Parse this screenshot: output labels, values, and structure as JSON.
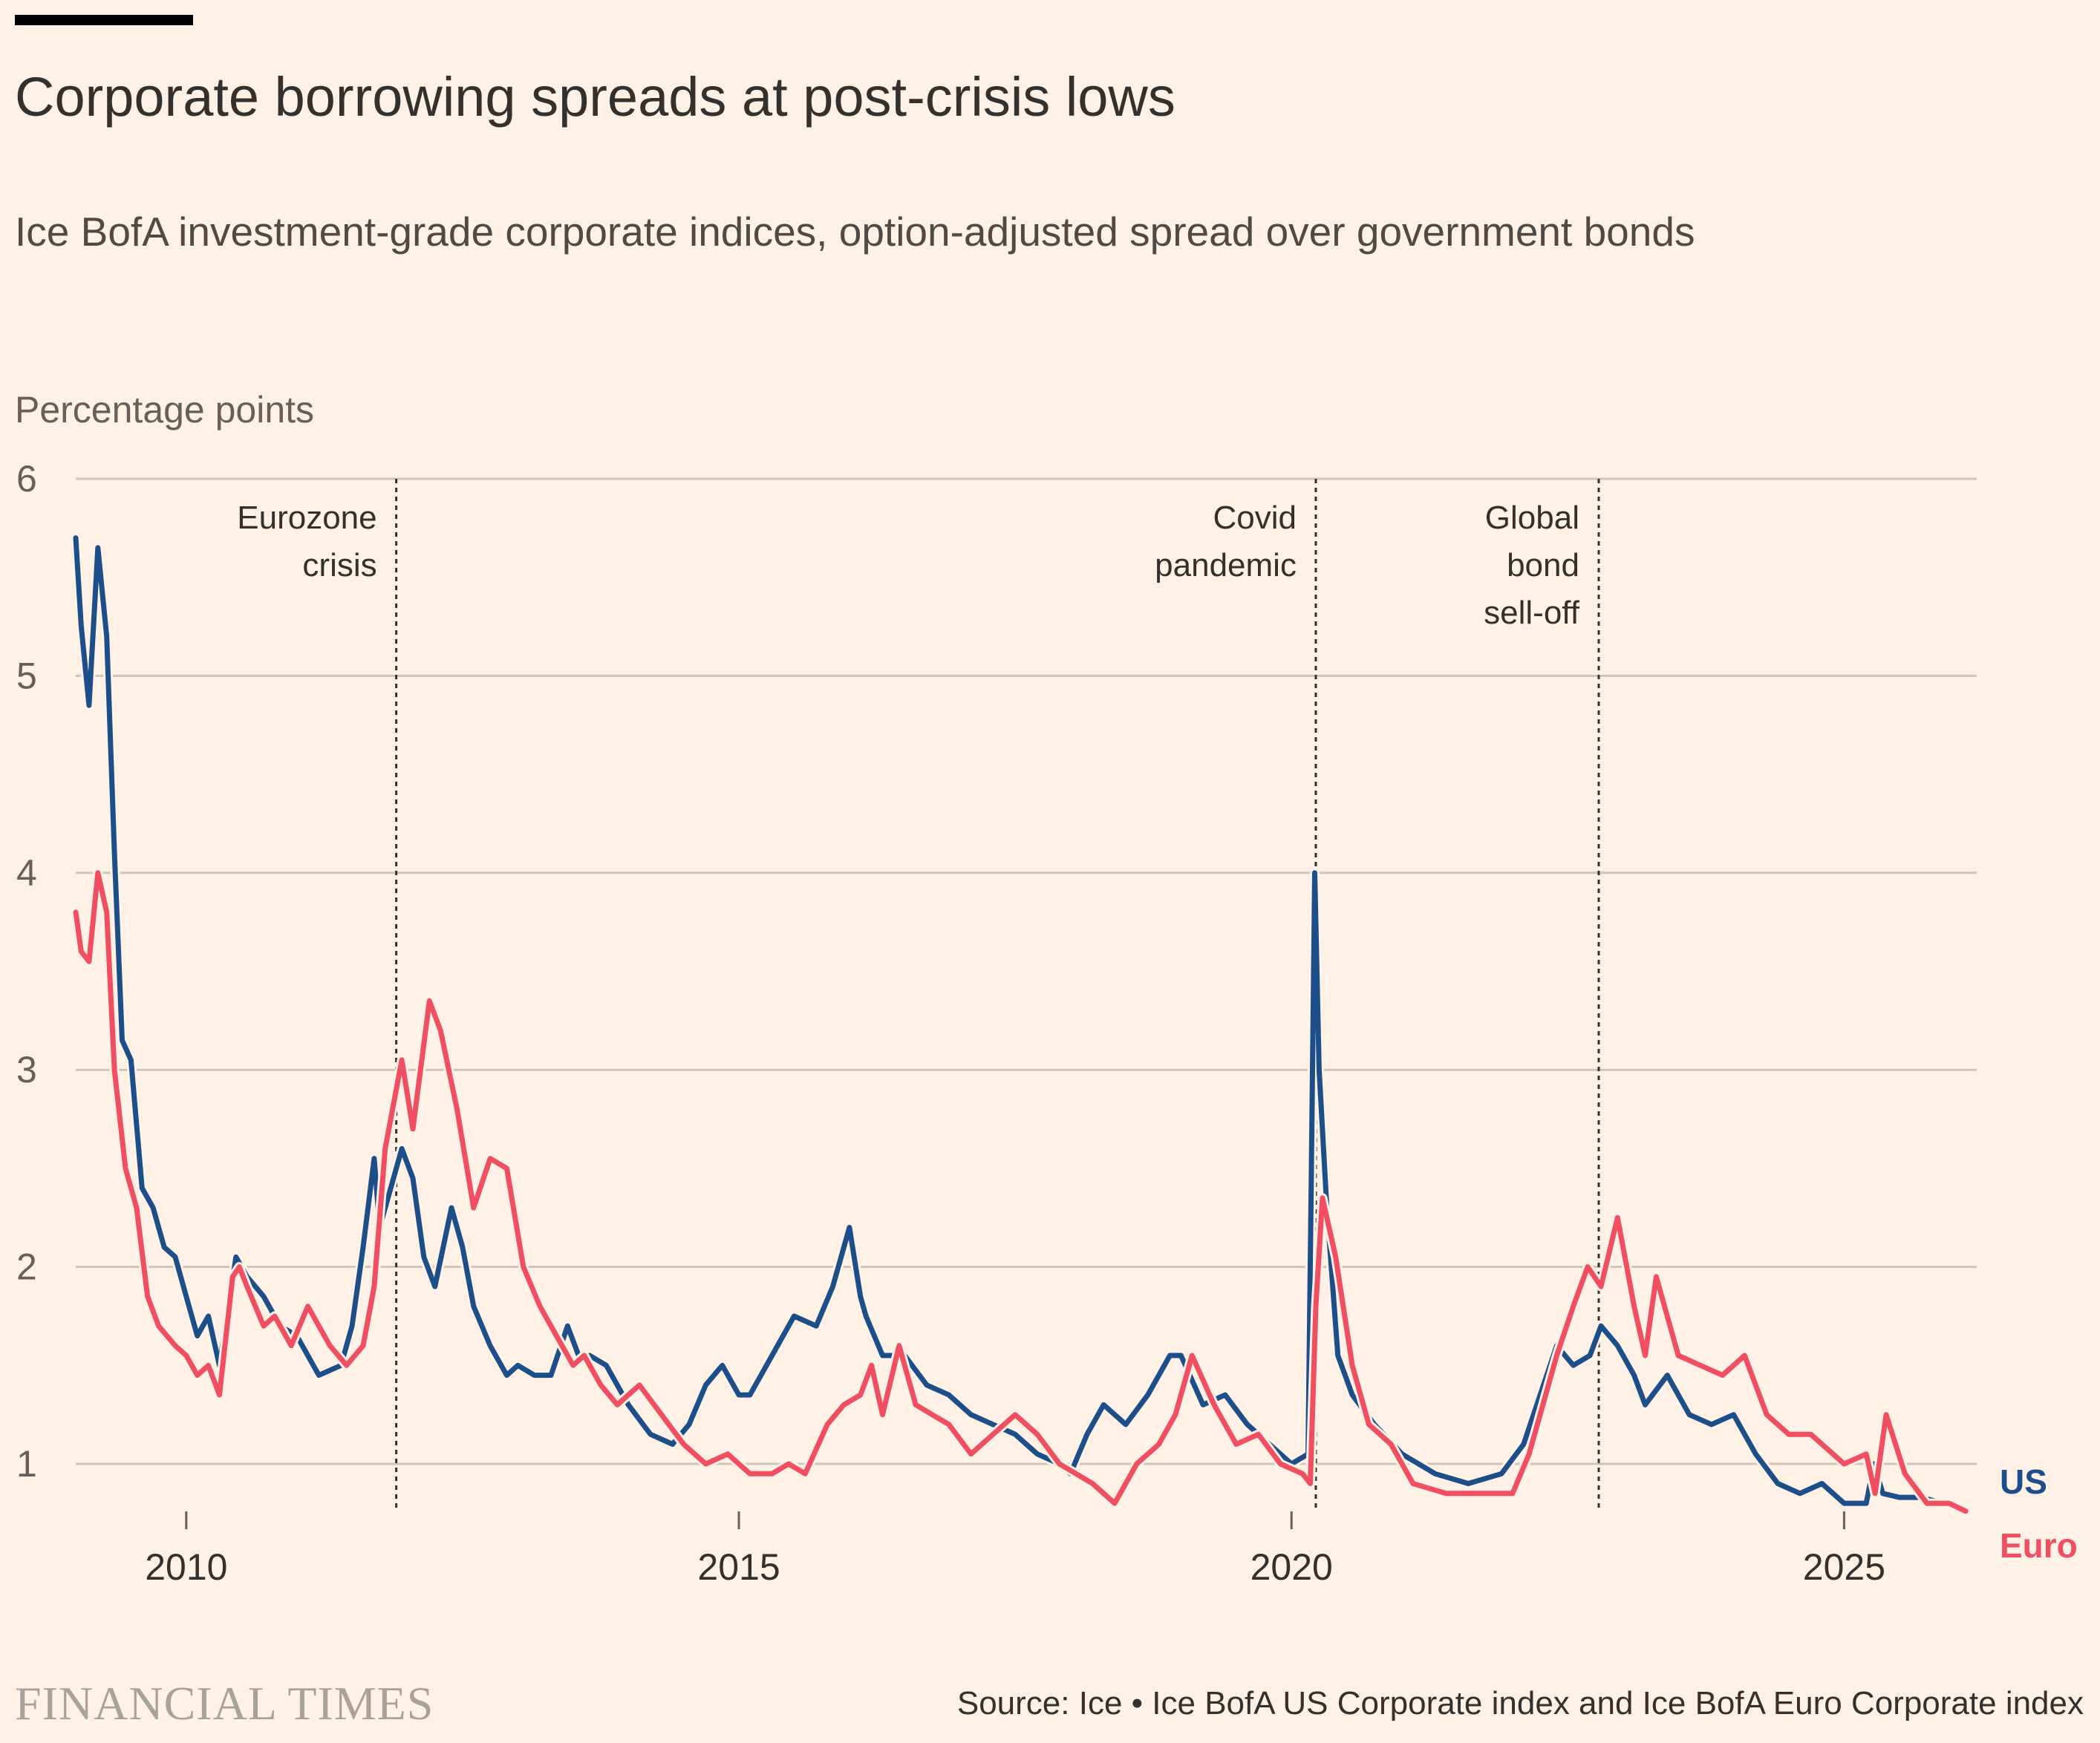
{
  "header": {
    "title": "Corporate borrowing spreads at post-crisis lows",
    "subtitle": "Ice BofA investment-grade corporate indices, option-adjusted spread over government bonds",
    "y_axis_title": "Percentage points"
  },
  "footer": {
    "brand": "FINANCIAL TIMES",
    "source": "Source: Ice • Ice BofA US Corporate index and Ice BofA Euro Corporate index"
  },
  "colors": {
    "background": "#FFF1E5",
    "us": "#1C4F8A",
    "euro": "#F04F62",
    "grid": "#CFC5BB"
  },
  "chart_data": {
    "type": "line",
    "title": "Corporate borrowing spreads at post-crisis lows",
    "ylabel": "Percentage points",
    "xlabel": "",
    "xlim": [
      2009.0,
      2026.2
    ],
    "ylim": [
      0.75,
      6
    ],
    "y_ticks": [
      1,
      2,
      3,
      4,
      5,
      6
    ],
    "x_ticks": [
      2010,
      2015,
      2020,
      2025
    ],
    "grid": true,
    "legend": "right-end labels",
    "annotations": [
      {
        "x": 2011.9,
        "lines": [
          "Eurozone",
          "crisis"
        ]
      },
      {
        "x": 2020.22,
        "lines": [
          "Covid",
          "pandemic"
        ]
      },
      {
        "x": 2022.78,
        "lines": [
          "Global",
          "bond",
          "sell-off"
        ]
      }
    ],
    "series": [
      {
        "name": "US",
        "color": "#1C4F8A",
        "x": [
          2009.0,
          2009.05,
          2009.12,
          2009.2,
          2009.28,
          2009.35,
          2009.42,
          2009.5,
          2009.6,
          2009.7,
          2009.8,
          2009.9,
          2010.0,
          2010.1,
          2010.2,
          2010.3,
          2010.45,
          2010.55,
          2010.7,
          2010.85,
          2011.0,
          2011.2,
          2011.4,
          2011.5,
          2011.6,
          2011.7,
          2011.75,
          2011.85,
          2011.95,
          2012.05,
          2012.15,
          2012.25,
          2012.4,
          2012.5,
          2012.6,
          2012.75,
          2012.9,
          2013.0,
          2013.15,
          2013.3,
          2013.45,
          2013.55,
          2013.65,
          2013.8,
          2014.0,
          2014.2,
          2014.4,
          2014.55,
          2014.7,
          2014.85,
          2015.0,
          2015.1,
          2015.3,
          2015.5,
          2015.7,
          2015.85,
          2016.0,
          2016.1,
          2016.15,
          2016.3,
          2016.5,
          2016.7,
          2016.9,
          2017.1,
          2017.3,
          2017.5,
          2017.7,
          2017.9,
          2018.0,
          2018.15,
          2018.3,
          2018.5,
          2018.7,
          2018.9,
          2019.0,
          2019.2,
          2019.4,
          2019.6,
          2019.8,
          2020.0,
          2020.15,
          2020.18,
          2020.21,
          2020.25,
          2020.32,
          2020.42,
          2020.55,
          2020.75,
          2021.0,
          2021.3,
          2021.6,
          2021.9,
          2022.1,
          2022.25,
          2022.4,
          2022.55,
          2022.7,
          2022.8,
          2022.95,
          2023.1,
          2023.2,
          2023.4,
          2023.6,
          2023.8,
          2024.0,
          2024.2,
          2024.4,
          2024.6,
          2024.8,
          2025.0,
          2025.2,
          2025.27,
          2025.35,
          2025.5,
          2025.7,
          2025.9,
          2026.1
        ],
        "values": [
          5.7,
          5.25,
          4.85,
          5.65,
          5.2,
          4.1,
          3.15,
          3.05,
          2.4,
          2.3,
          2.1,
          2.05,
          1.85,
          1.65,
          1.75,
          1.5,
          2.05,
          1.95,
          1.85,
          1.7,
          1.65,
          1.45,
          1.5,
          1.7,
          2.1,
          2.55,
          2.2,
          2.4,
          2.6,
          2.45,
          2.05,
          1.9,
          2.3,
          2.1,
          1.8,
          1.6,
          1.45,
          1.5,
          1.45,
          1.45,
          1.7,
          1.55,
          1.55,
          1.5,
          1.3,
          1.15,
          1.1,
          1.2,
          1.4,
          1.5,
          1.35,
          1.35,
          1.55,
          1.75,
          1.7,
          1.9,
          2.2,
          1.85,
          1.75,
          1.55,
          1.55,
          1.4,
          1.35,
          1.25,
          1.2,
          1.15,
          1.05,
          1.0,
          0.95,
          1.15,
          1.3,
          1.2,
          1.35,
          1.55,
          1.55,
          1.3,
          1.35,
          1.2,
          1.1,
          1.0,
          1.05,
          2.5,
          4.0,
          3.0,
          2.3,
          1.55,
          1.35,
          1.2,
          1.05,
          0.95,
          0.9,
          0.95,
          1.1,
          1.35,
          1.6,
          1.5,
          1.55,
          1.7,
          1.6,
          1.45,
          1.3,
          1.45,
          1.25,
          1.2,
          1.25,
          1.05,
          0.9,
          0.85,
          0.9,
          0.8,
          0.8,
          1.0,
          0.85,
          0.83,
          0.83,
          0.8,
          0.76
        ]
      },
      {
        "name": "Euro",
        "color": "#F04F62",
        "x": [
          2009.0,
          2009.05,
          2009.12,
          2009.2,
          2009.28,
          2009.35,
          2009.45,
          2009.55,
          2009.65,
          2009.75,
          2009.9,
          2010.0,
          2010.1,
          2010.2,
          2010.3,
          2010.42,
          2010.48,
          2010.55,
          2010.7,
          2010.8,
          2010.95,
          2011.1,
          2011.3,
          2011.45,
          2011.6,
          2011.7,
          2011.8,
          2011.95,
          2012.05,
          2012.2,
          2012.3,
          2012.45,
          2012.6,
          2012.75,
          2012.9,
          2013.05,
          2013.2,
          2013.35,
          2013.5,
          2013.6,
          2013.75,
          2013.9,
          2014.1,
          2014.3,
          2014.5,
          2014.7,
          2014.9,
          2015.1,
          2015.3,
          2015.45,
          2015.6,
          2015.8,
          2015.95,
          2016.1,
          2016.2,
          2016.3,
          2016.45,
          2016.6,
          2016.75,
          2016.9,
          2017.1,
          2017.3,
          2017.5,
          2017.7,
          2017.9,
          2018.05,
          2018.2,
          2018.4,
          2018.6,
          2018.8,
          2018.95,
          2019.1,
          2019.3,
          2019.5,
          2019.7,
          2019.9,
          2020.1,
          2020.17,
          2020.22,
          2020.28,
          2020.4,
          2020.55,
          2020.7,
          2020.9,
          2021.1,
          2021.4,
          2021.7,
          2021.9,
          2022.0,
          2022.15,
          2022.3,
          2022.4,
          2022.55,
          2022.68,
          2022.8,
          2022.95,
          2023.1,
          2023.2,
          2023.3,
          2023.5,
          2023.7,
          2023.9,
          2024.1,
          2024.3,
          2024.5,
          2024.7,
          2024.9,
          2025.0,
          2025.2,
          2025.28,
          2025.38,
          2025.55,
          2025.75,
          2025.95,
          2026.1
        ],
        "values": [
          3.8,
          3.6,
          3.55,
          4.0,
          3.8,
          3.0,
          2.5,
          2.3,
          1.85,
          1.7,
          1.6,
          1.55,
          1.45,
          1.5,
          1.35,
          1.95,
          2.0,
          1.9,
          1.7,
          1.75,
          1.6,
          1.8,
          1.6,
          1.5,
          1.6,
          1.9,
          2.6,
          3.05,
          2.7,
          3.35,
          3.2,
          2.8,
          2.3,
          2.55,
          2.5,
          2.0,
          1.8,
          1.65,
          1.5,
          1.55,
          1.4,
          1.3,
          1.4,
          1.25,
          1.1,
          1.0,
          1.05,
          0.95,
          0.95,
          1.0,
          0.95,
          1.2,
          1.3,
          1.35,
          1.5,
          1.25,
          1.6,
          1.3,
          1.25,
          1.2,
          1.05,
          1.15,
          1.25,
          1.15,
          1.0,
          0.95,
          0.9,
          0.8,
          1.0,
          1.1,
          1.25,
          1.55,
          1.3,
          1.1,
          1.15,
          1.0,
          0.95,
          0.9,
          1.8,
          2.35,
          2.05,
          1.5,
          1.2,
          1.1,
          0.9,
          0.85,
          0.85,
          0.85,
          0.85,
          1.05,
          1.35,
          1.55,
          1.8,
          2.0,
          1.9,
          2.25,
          1.8,
          1.55,
          1.95,
          1.55,
          1.5,
          1.45,
          1.55,
          1.25,
          1.15,
          1.15,
          1.05,
          1.0,
          1.05,
          0.85,
          1.25,
          0.95,
          0.8,
          0.8,
          0.76
        ]
      }
    ]
  }
}
